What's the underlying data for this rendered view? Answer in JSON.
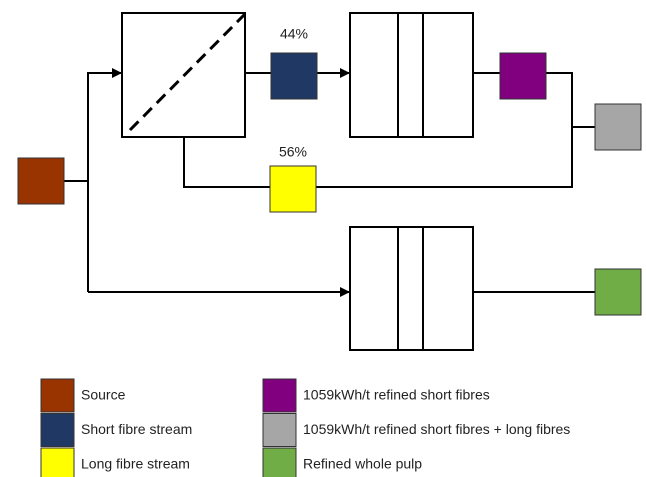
{
  "split_labels": [
    "44%",
    "56%"
  ],
  "legend": [
    {
      "label": "Source",
      "color": "#993300"
    },
    {
      "label": "Short fibre stream",
      "color": "#1f3864"
    },
    {
      "label": "Long fibre stream",
      "color": "#ffff00"
    },
    {
      "label": "1059kWh/t refined short fibres",
      "color": "#800080"
    },
    {
      "label": "1059kWh/t refined short fibres + long fibres",
      "color": "#a6a6a6"
    },
    {
      "label": "Refined whole pulp",
      "color": "#70ad47"
    }
  ]
}
